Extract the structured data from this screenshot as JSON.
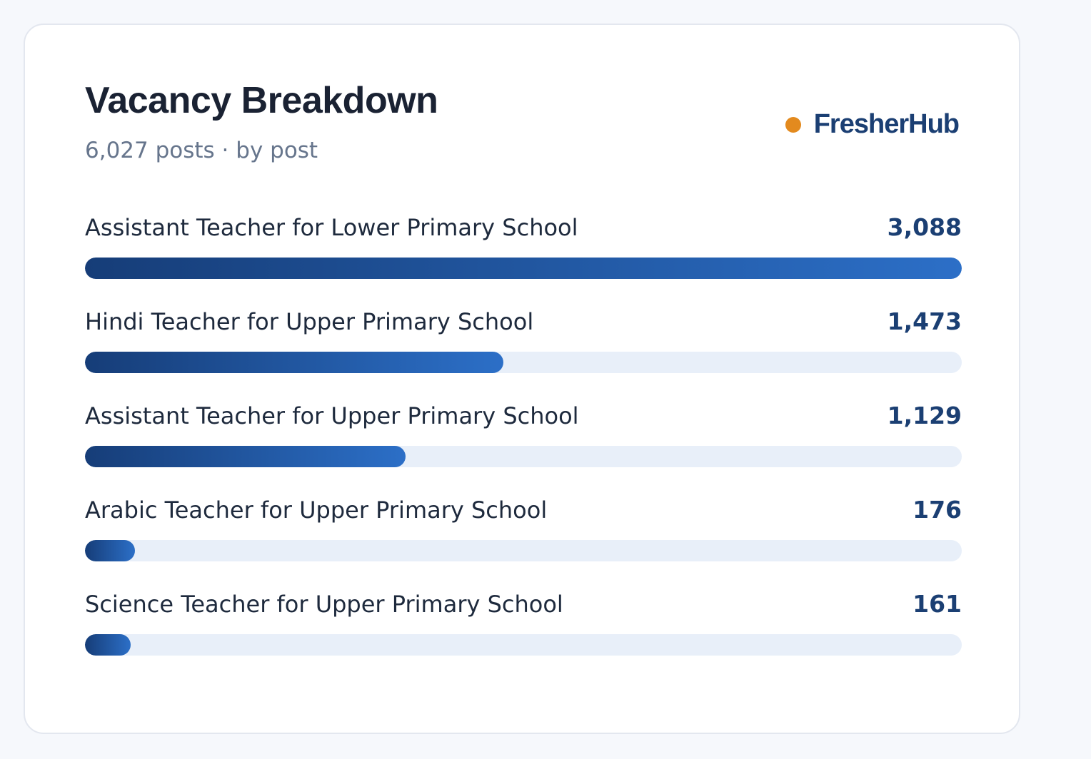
{
  "chart_data": {
    "type": "bar",
    "orientation": "horizontal",
    "title": "Vacancy Breakdown",
    "subtitle": "6,027 posts · by post",
    "categories": [
      "Assistant Teacher for Lower Primary School",
      "Hindi Teacher for Upper Primary School",
      "Assistant Teacher for Upper Primary School",
      "Arabic Teacher for Upper Primary School",
      "Science Teacher for Upper Primary School"
    ],
    "values": [
      3088,
      1473,
      1129,
      176,
      161
    ],
    "value_labels": [
      "3,088",
      "1,473",
      "1,129",
      "176",
      "161"
    ],
    "xlim": [
      0,
      3088
    ],
    "grid": false
  },
  "brand": {
    "name": "FresherHub",
    "dot_color": "#e38a1e",
    "text_color": "#1b3f73"
  },
  "colors": {
    "bar_start": "#163d78",
    "bar_end": "#2c6fc7",
    "track": "#e8eff9"
  }
}
